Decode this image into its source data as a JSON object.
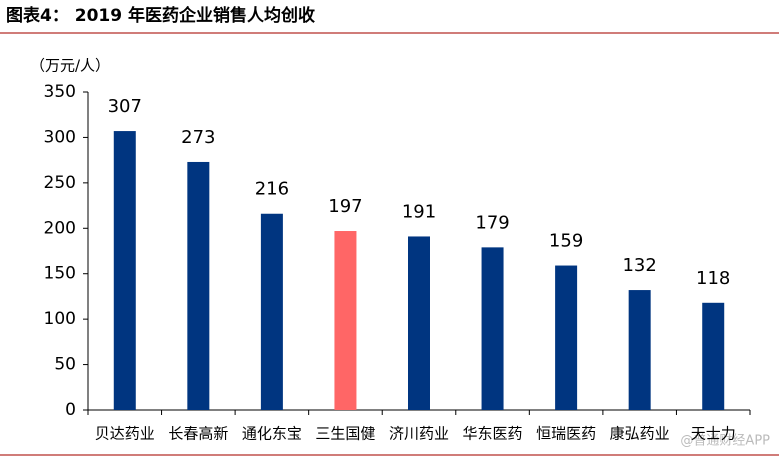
{
  "chart_data": {
    "type": "bar",
    "title": "图表4：  2019 年医药企业销售人均创收",
    "y_label": "（万元/人）",
    "categories": [
      "贝达药业",
      "长春高新",
      "通化东宝",
      "三生国健",
      "济川药业",
      "华东医药",
      "恒瑞医药",
      "康弘药业",
      "天士力"
    ],
    "values": [
      307,
      273,
      216,
      197,
      191,
      179,
      159,
      132,
      118
    ],
    "colors": [
      "#003580",
      "#003580",
      "#003580",
      "#ff6666",
      "#003580",
      "#003580",
      "#003580",
      "#003580",
      "#003580"
    ],
    "ylim": [
      0,
      350
    ],
    "yticks": [
      0,
      50,
      100,
      150,
      200,
      250,
      300,
      350
    ],
    "grid": false,
    "watermark": "@普通财经APP"
  }
}
